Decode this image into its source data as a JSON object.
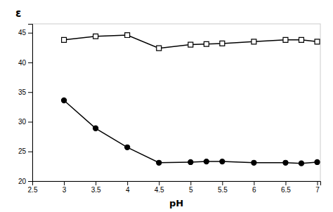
{
  "chart_data": {
    "type": "line",
    "x_label": "pH",
    "y_label": "ε",
    "x": [
      3.0,
      3.5,
      4.0,
      4.5,
      5.0,
      5.25,
      5.5,
      6.0,
      6.5,
      6.75,
      7.0
    ],
    "series": [
      {
        "color": "#000000",
        "marker": "square-open",
        "values": [
          43.8,
          44.4,
          44.6,
          42.4,
          43.0,
          43.1,
          43.2,
          43.5,
          43.8,
          43.8,
          43.5
        ]
      },
      {
        "color": "#000000",
        "marker": "circle",
        "values": [
          33.6,
          28.9,
          25.7,
          23.1,
          23.2,
          23.3,
          23.3,
          23.1,
          23.1,
          23.0,
          23.2
        ]
      }
    ],
    "xlim": [
      2.5,
      7.05
    ],
    "ylim": [
      20,
      46.5
    ],
    "xticks": [
      2.5,
      3.0,
      3.5,
      4.0,
      4.5,
      5.0,
      5.5,
      6.0,
      6.5,
      7.0
    ],
    "yticks": [
      20,
      25,
      30,
      35,
      40,
      45
    ],
    "grid": false
  }
}
